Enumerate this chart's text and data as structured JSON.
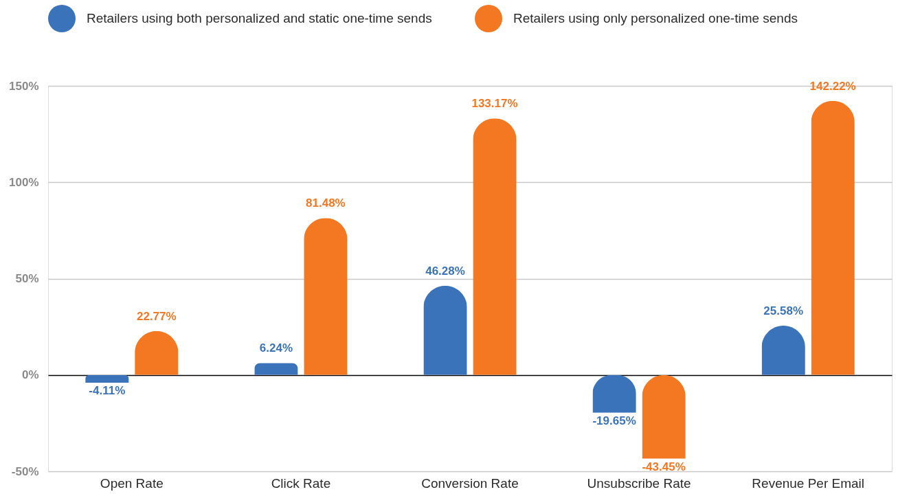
{
  "chart_data": {
    "type": "bar",
    "categories": [
      "Open Rate",
      "Click Rate",
      "Conversion Rate",
      "Unsubscribe Rate",
      "Revenue Per Email"
    ],
    "series": [
      {
        "name": "Retailers using both personalized and static one-time sends",
        "color": "#3b73bb",
        "values": [
          -4.11,
          6.24,
          46.28,
          -19.65,
          25.58
        ],
        "value_labels": [
          "-4.11%",
          "6.24%",
          "46.28%",
          "-19.65%",
          "25.58%"
        ]
      },
      {
        "name": "Retailers using only personalized one-time sends",
        "color": "#f47721",
        "values": [
          22.77,
          81.48,
          133.17,
          -43.45,
          142.22
        ],
        "value_labels": [
          "22.77%",
          "81.48%",
          "133.17%",
          "-43.45%",
          "142.22%"
        ]
      }
    ],
    "ylim": [
      -50,
      150
    ],
    "yticks": [
      {
        "value": -50,
        "label": "-50%"
      },
      {
        "value": 0,
        "label": "0%"
      },
      {
        "value": 50,
        "label": "50%"
      },
      {
        "value": 100,
        "label": "100%"
      },
      {
        "value": 150,
        "label": "150%"
      }
    ],
    "grid": "y",
    "legend": "top left"
  }
}
